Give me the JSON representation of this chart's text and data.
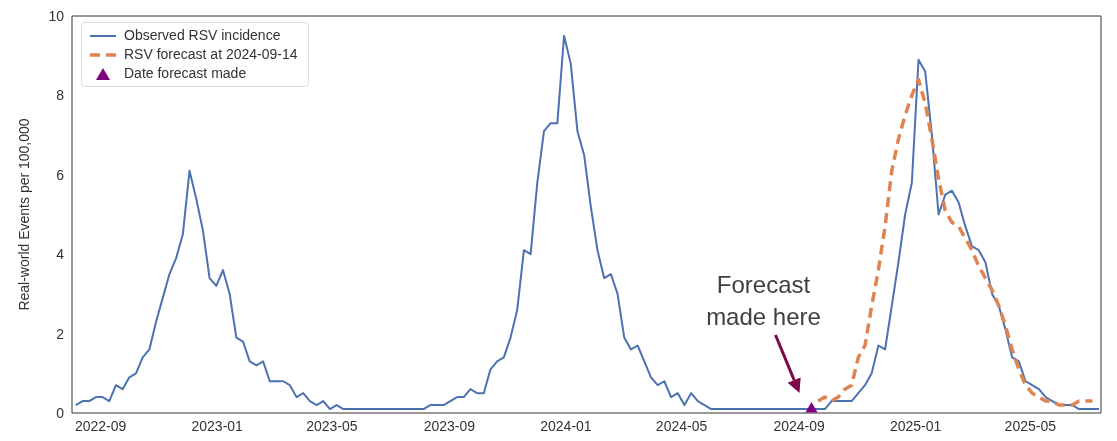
{
  "chart_data": {
    "type": "line",
    "ylabel": "Real-world Events per 100,000",
    "xlim": [
      "2022-08-02",
      "2025-07-14"
    ],
    "ylim": [
      0,
      10
    ],
    "xticks": [
      "2022-09",
      "2023-01",
      "2023-05",
      "2023-09",
      "2024-01",
      "2024-05",
      "2024-09",
      "2025-01",
      "2025-05"
    ],
    "yticks": [
      0,
      2,
      4,
      6,
      8,
      10
    ],
    "grid": false,
    "legend": "top left",
    "x": [
      "2022-08-06",
      "2022-08-13",
      "2022-08-20",
      "2022-08-27",
      "2022-09-03",
      "2022-09-10",
      "2022-09-17",
      "2022-09-24",
      "2022-10-01",
      "2022-10-08",
      "2022-10-15",
      "2022-10-22",
      "2022-10-29",
      "2022-11-05",
      "2022-11-12",
      "2022-11-19",
      "2022-11-26",
      "2022-12-03",
      "2022-12-10",
      "2022-12-17",
      "2022-12-24",
      "2022-12-31",
      "2023-01-07",
      "2023-01-14",
      "2023-01-21",
      "2023-01-28",
      "2023-02-04",
      "2023-02-11",
      "2023-02-18",
      "2023-02-25",
      "2023-03-04",
      "2023-03-11",
      "2023-03-18",
      "2023-03-25",
      "2023-04-01",
      "2023-04-08",
      "2023-04-15",
      "2023-04-22",
      "2023-04-29",
      "2023-05-06",
      "2023-05-13",
      "2023-05-20",
      "2023-05-27",
      "2023-06-03",
      "2023-06-10",
      "2023-06-17",
      "2023-06-24",
      "2023-07-01",
      "2023-07-08",
      "2023-07-15",
      "2023-07-22",
      "2023-07-29",
      "2023-08-05",
      "2023-08-12",
      "2023-08-19",
      "2023-08-26",
      "2023-09-02",
      "2023-09-09",
      "2023-09-16",
      "2023-09-23",
      "2023-09-30",
      "2023-10-07",
      "2023-10-14",
      "2023-10-21",
      "2023-10-28",
      "2023-11-04",
      "2023-11-11",
      "2023-11-18",
      "2023-11-25",
      "2023-12-02",
      "2023-12-09",
      "2023-12-16",
      "2023-12-23",
      "2023-12-30",
      "2024-01-06",
      "2024-01-13",
      "2024-01-20",
      "2024-01-27",
      "2024-02-03",
      "2024-02-10",
      "2024-02-17",
      "2024-02-24",
      "2024-03-02",
      "2024-03-09",
      "2024-03-16",
      "2024-03-23",
      "2024-03-30",
      "2024-04-06",
      "2024-04-13",
      "2024-04-20",
      "2024-04-27",
      "2024-05-04",
      "2024-05-11",
      "2024-05-18",
      "2024-05-25",
      "2024-06-01",
      "2024-06-08",
      "2024-06-15",
      "2024-06-22",
      "2024-06-29",
      "2024-07-06",
      "2024-07-13",
      "2024-07-20",
      "2024-07-27",
      "2024-08-03",
      "2024-08-10",
      "2024-08-17",
      "2024-08-24",
      "2024-08-31",
      "2024-09-07",
      "2024-09-14",
      "2024-09-21",
      "2024-09-28",
      "2024-10-05",
      "2024-10-12",
      "2024-10-19",
      "2024-10-26",
      "2024-11-02",
      "2024-11-09",
      "2024-11-16",
      "2024-11-23",
      "2024-11-30",
      "2024-12-07",
      "2024-12-14",
      "2024-12-21",
      "2024-12-28",
      "2025-01-04",
      "2025-01-11",
      "2025-01-18",
      "2025-01-25",
      "2025-02-01",
      "2025-02-08",
      "2025-02-15",
      "2025-02-22",
      "2025-03-01",
      "2025-03-08",
      "2025-03-15",
      "2025-03-22",
      "2025-03-29",
      "2025-04-05",
      "2025-04-12",
      "2025-04-19",
      "2025-04-26",
      "2025-05-03",
      "2025-05-10",
      "2025-05-17",
      "2025-05-24",
      "2025-05-31",
      "2025-06-07",
      "2025-06-14",
      "2025-06-21",
      "2025-06-28",
      "2025-07-05",
      "2025-07-12"
    ],
    "series": [
      {
        "name": "Observed RSV incidence",
        "color": "#4c72b0",
        "line_style": "solid",
        "values": [
          0.2,
          0.3,
          0.3,
          0.4,
          0.4,
          0.3,
          0.7,
          0.6,
          0.9,
          1.0,
          1.4,
          1.6,
          2.3,
          2.9,
          3.5,
          3.9,
          4.5,
          6.1,
          5.4,
          4.6,
          3.4,
          3.2,
          3.6,
          3.0,
          1.9,
          1.8,
          1.3,
          1.2,
          1.3,
          0.8,
          0.8,
          0.8,
          0.7,
          0.4,
          0.5,
          0.3,
          0.2,
          0.3,
          0.1,
          0.2,
          0.1,
          0.1,
          0.1,
          0.1,
          0.1,
          0.1,
          0.1,
          0.1,
          0.1,
          0.1,
          0.1,
          0.1,
          0.1,
          0.2,
          0.2,
          0.2,
          0.3,
          0.4,
          0.4,
          0.6,
          0.5,
          0.5,
          1.1,
          1.3,
          1.4,
          1.9,
          2.6,
          4.1,
          4.0,
          5.8,
          7.1,
          7.3,
          7.3,
          9.5,
          8.8,
          7.1,
          6.5,
          5.2,
          4.1,
          3.4,
          3.5,
          3.0,
          1.9,
          1.6,
          1.7,
          1.3,
          0.9,
          0.7,
          0.8,
          0.4,
          0.5,
          0.2,
          0.5,
          0.3,
          0.2,
          0.1,
          0.1,
          0.1,
          0.1,
          0.1,
          0.1,
          0.1,
          0.1,
          0.1,
          0.1,
          0.1,
          0.1,
          0.1,
          0.1,
          0.1,
          0.1,
          0.1,
          0.1,
          0.3,
          0.3,
          0.3,
          0.3,
          0.5,
          0.7,
          1.0,
          1.7,
          1.6,
          2.7,
          3.8,
          5.0,
          5.8,
          8.9,
          8.6,
          7.0,
          5.0,
          5.5,
          5.6,
          5.3,
          4.7,
          4.2,
          4.1,
          3.8,
          3.0,
          2.7,
          2.1,
          1.4,
          1.3,
          0.8,
          0.7,
          0.6,
          0.4,
          0.3,
          0.2,
          0.2,
          0.2,
          0.1,
          0.1,
          0.1,
          0.1
        ]
      },
      {
        "name": "RSV forecast at 2024-09-14",
        "color": "#dd8452",
        "line_style": "dashed",
        "x": [
          "2024-09-21",
          "2024-09-28",
          "2024-10-05",
          "2024-10-12",
          "2024-10-19",
          "2024-10-26",
          "2024-11-02",
          "2024-11-09",
          "2024-11-16",
          "2024-11-23",
          "2024-11-30",
          "2024-12-07",
          "2024-12-14",
          "2024-12-21",
          "2024-12-28",
          "2025-01-04",
          "2025-01-11",
          "2025-01-18",
          "2025-01-25",
          "2025-02-01",
          "2025-02-08",
          "2025-02-15",
          "2025-02-22",
          "2025-03-01",
          "2025-03-08",
          "2025-03-15",
          "2025-03-22",
          "2025-03-29",
          "2025-04-05",
          "2025-04-12",
          "2025-04-19",
          "2025-04-26",
          "2025-05-03",
          "2025-05-10",
          "2025-05-17",
          "2025-05-24",
          "2025-05-31",
          "2025-06-07",
          "2025-06-14",
          "2025-06-21",
          "2025-06-28",
          "2025-07-05"
        ],
        "values": [
          0.3,
          0.4,
          0.3,
          0.4,
          0.6,
          0.7,
          1.4,
          1.7,
          2.7,
          3.6,
          4.7,
          6.1,
          6.9,
          7.5,
          8.0,
          8.4,
          7.8,
          6.9,
          5.9,
          5.1,
          4.8,
          4.7,
          4.4,
          4.1,
          3.7,
          3.4,
          3.1,
          2.7,
          2.2,
          1.6,
          1.1,
          0.7,
          0.5,
          0.4,
          0.3,
          0.3,
          0.2,
          0.2,
          0.2,
          0.3,
          0.3,
          0.3
        ]
      },
      {
        "name": "Date forecast made",
        "type": "scatter",
        "color": "#800080",
        "marker": "triangle",
        "x": [
          "2024-09-14"
        ],
        "values": [
          0.1
        ]
      }
    ],
    "annotations": [
      "Forecast made here"
    ]
  }
}
